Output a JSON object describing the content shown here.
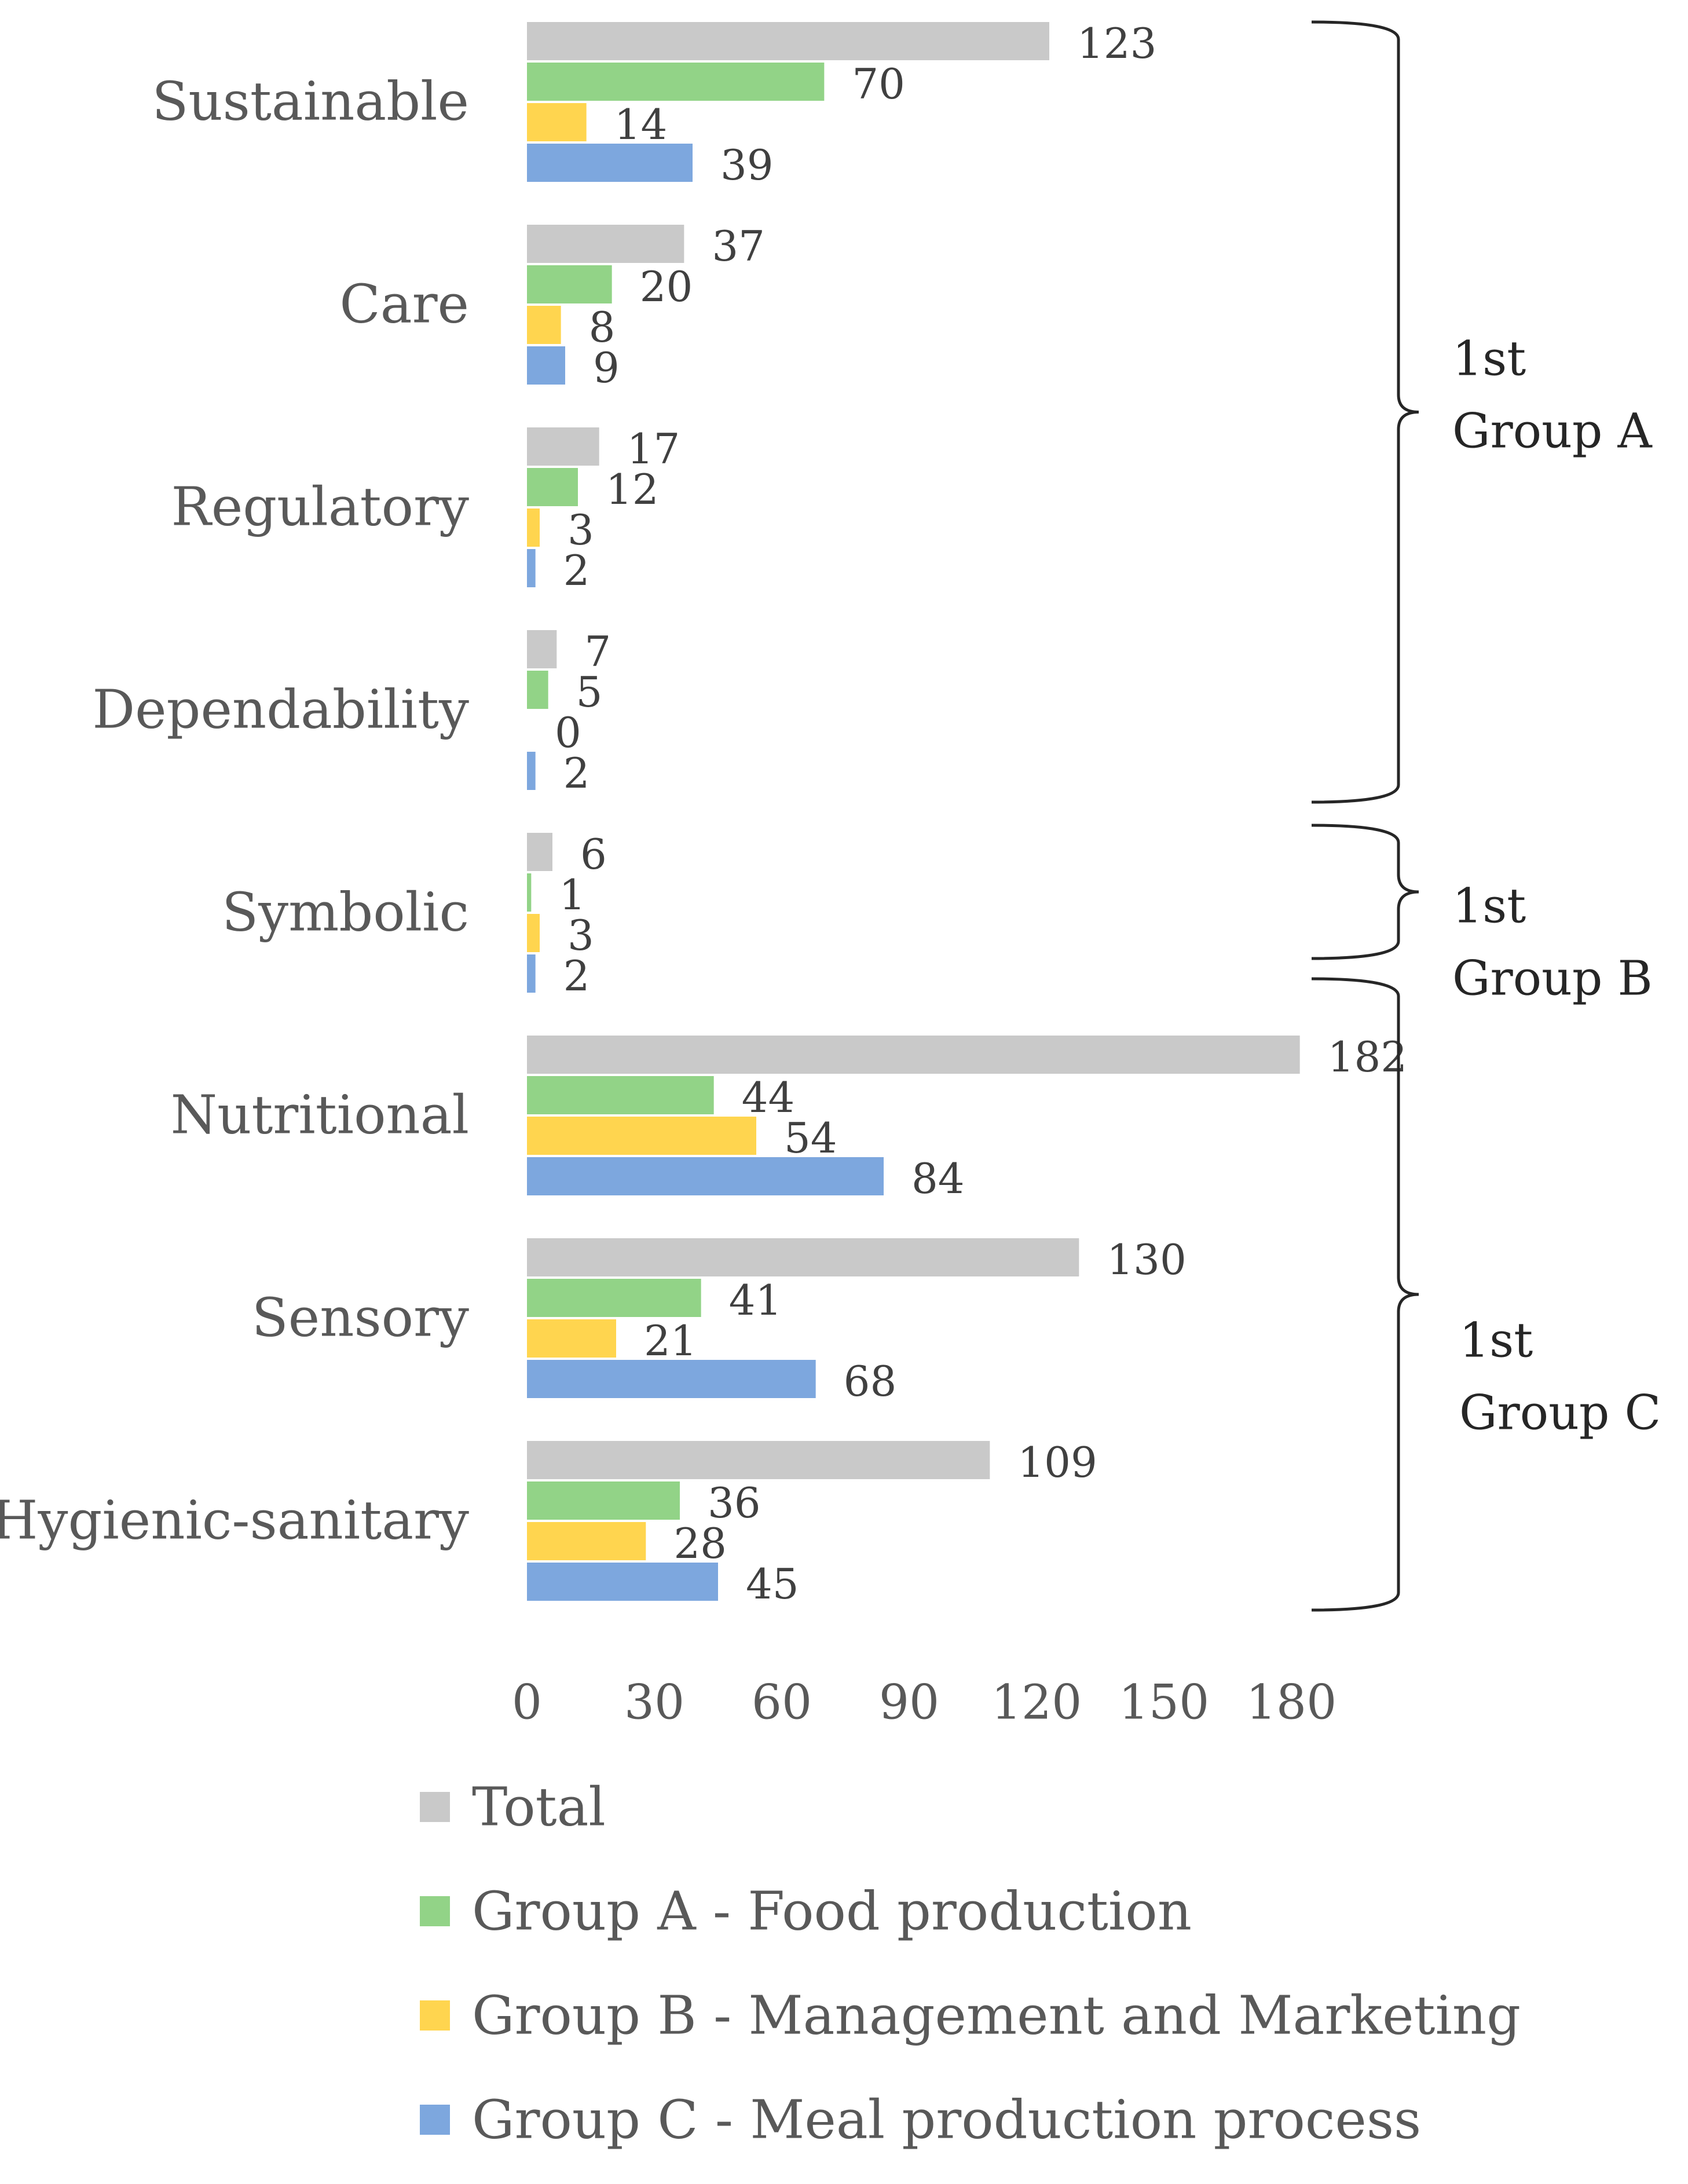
{
  "chart_data": {
    "type": "bar",
    "orientation": "horizontal",
    "categories": [
      "Sustainable",
      "Care",
      "Regulatory",
      "Dependability",
      "Symbolic",
      "Nutritional",
      "Sensory",
      "Hygienic-sanitary"
    ],
    "series": [
      {
        "name": "Total",
        "color": "#C9C9C9",
        "values": [
          123,
          37,
          17,
          7,
          6,
          182,
          130,
          109
        ]
      },
      {
        "name": "Group A - Food production",
        "color": "#92D387",
        "values": [
          70,
          20,
          12,
          5,
          1,
          44,
          41,
          36
        ]
      },
      {
        "name": "Group B - Management and Marketing",
        "color": "#FFD54F",
        "values": [
          14,
          8,
          3,
          0,
          3,
          54,
          21,
          28
        ]
      },
      {
        "name": "Group C - Meal production process",
        "color": "#7DA7DE",
        "values": [
          39,
          9,
          2,
          2,
          2,
          84,
          68,
          45
        ]
      }
    ],
    "xlim": [
      0,
      180
    ],
    "xticks": [
      0,
      30,
      60,
      90,
      120,
      150,
      180
    ],
    "grid": false,
    "legend_position": "bottom",
    "annotations": [
      {
        "line1": "1st",
        "line2": "Group A",
        "categories": [
          "Sustainable",
          "Care",
          "Regulatory",
          "Dependability"
        ]
      },
      {
        "line1": "1st",
        "line2": "Group B",
        "categories": [
          "Symbolic"
        ]
      },
      {
        "line1": "1st",
        "line2": "Group C",
        "categories": [
          "Nutritional",
          "Sensory",
          "Hygienic-sanitary"
        ]
      }
    ]
  }
}
